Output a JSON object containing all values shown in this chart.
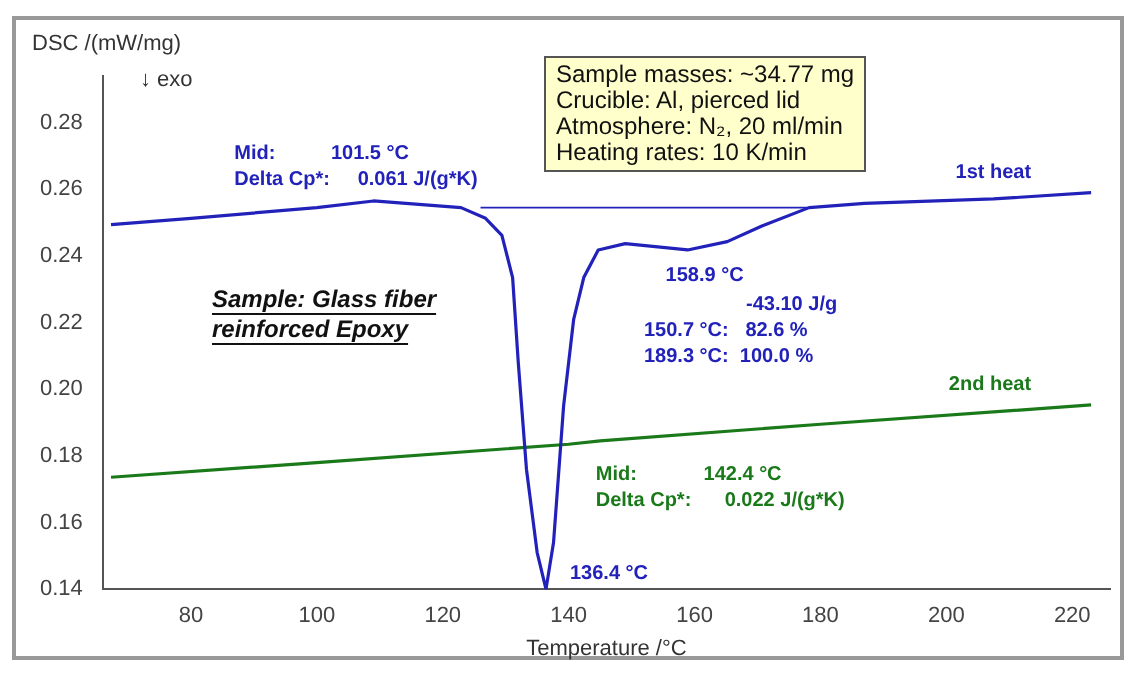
{
  "chart_data": {
    "type": "line",
    "xlabel": "Temperature /°C",
    "ylabel": "DSC /(mW/mg)",
    "xlim": [
      66,
      226
    ],
    "xticks": [
      80,
      100,
      120,
      140,
      160,
      180,
      200,
      220
    ],
    "ylim": [
      0.14,
      0.294
    ],
    "yticks": [
      0.14,
      0.16,
      0.18,
      {
        "value": 0.2,
        "label": "0.20"
      },
      0.22,
      0.24,
      0.26,
      0.28
    ],
    "grid": false,
    "legend": false,
    "marker": "none",
    "line_style": "solid",
    "series": [
      {
        "name": "1st heat",
        "color": "#2222bb",
        "x": [
          67.3,
          80,
          100,
          109,
          122.9,
          126.8,
          129.4,
          131.1,
          132,
          133.3,
          135,
          136.4,
          137.6,
          139.2,
          140.8,
          142.4,
          144.7,
          149,
          158.9,
          165.2,
          170.7,
          178.2,
          187,
          207.5,
          223
        ],
        "values": [
          0.2494,
          0.2513,
          0.2545,
          0.2565,
          0.2545,
          0.2513,
          0.2462,
          0.2335,
          0.208,
          0.176,
          0.151,
          0.14,
          0.154,
          0.195,
          0.221,
          0.2335,
          0.2418,
          0.2437,
          0.2418,
          0.2443,
          0.249,
          0.2545,
          0.2558,
          0.2571,
          0.259
        ]
      },
      {
        "name": "2nd heat",
        "color": "#1a7a1a",
        "x": [
          67.3,
          100,
          140,
          145,
          180,
          223
        ],
        "values": [
          0.1736,
          0.178,
          0.1835,
          0.1845,
          0.1895,
          0.1953
        ]
      },
      {
        "color": "#2222bb",
        "x": [
          126,
          158.9,
          178
        ],
        "values": [
          0.2545,
          0.2545,
          0.2545
        ]
      }
    ],
    "annotations": [
      {
        "text": "Mid:          101.5 °C\nDelta Cp*:     0.061 J/(g*K)",
        "x": 101.5,
        "y": 0.2545
      },
      {
        "text": "158.9 °C",
        "x": 158.9,
        "y": 0.2418
      },
      "-43.10 J/g\n150.7 °C:   82.6 %\n189.3 °C:  100.0 %",
      {
        "text": "Mid:            142.4 °C\nDelta Cp*:      0.022 J/(g*K)",
        "x": 142.4,
        "y": 0.184
      },
      {
        "text": "136.4 °C",
        "x": 136.4,
        "y": 0.14
      },
      "Sample: Glass fiber\nreinforced Epoxy",
      "Sample masses: ~34.77 mg\nCrucible: Al, pierced lid\nAtmosphere: N₂, 20 ml/min\nHeating rates: 10 K/min",
      "↓ exo"
    ]
  }
}
